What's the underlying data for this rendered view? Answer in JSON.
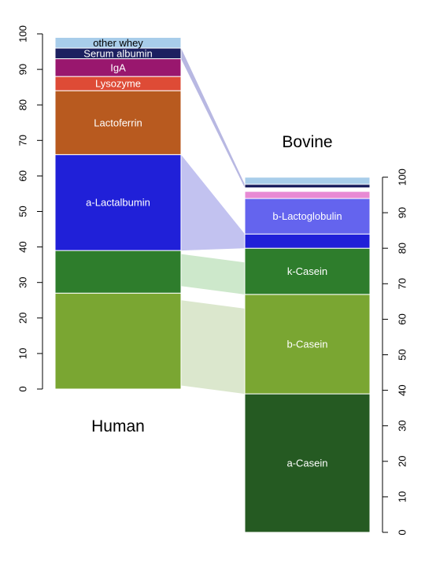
{
  "chart_data": {
    "type": "bar",
    "stacked": true,
    "bars": [
      {
        "name": "Human",
        "axis": {
          "side": "left",
          "ylim": [
            0,
            100
          ],
          "ticks": [
            0,
            10,
            20,
            30,
            40,
            50,
            60,
            70,
            80,
            90,
            100
          ]
        },
        "segments": [
          {
            "label": "",
            "start": 0,
            "end": 27,
            "color": "#7aa632"
          },
          {
            "label": "",
            "start": 27,
            "end": 39,
            "color": "#2e7d2c"
          },
          {
            "label": "a-Lactalbumin",
            "start": 39,
            "end": 66,
            "color": "#2020d8"
          },
          {
            "label": "Lactoferrin",
            "start": 66,
            "end": 84,
            "color": "#b85a1f"
          },
          {
            "label": "Lysozyme",
            "start": 84,
            "end": 88,
            "color": "#de4b36"
          },
          {
            "label": "IgA",
            "start": 88,
            "end": 93,
            "color": "#99176e"
          },
          {
            "label": "Serum albumin",
            "start": 93,
            "end": 96,
            "color": "#1c2060"
          },
          {
            "label": "other whey",
            "start": 96,
            "end": 99,
            "color": "#a8cdea"
          }
        ]
      },
      {
        "name": "Bovine",
        "axis": {
          "side": "right",
          "ylim": [
            0,
            100
          ],
          "ticks": [
            0,
            10,
            20,
            30,
            40,
            50,
            60,
            70,
            80,
            90,
            100
          ]
        },
        "segments": [
          {
            "label": "a-Casein",
            "start": 0,
            "end": 39,
            "color": "#255a22"
          },
          {
            "label": "b-Casein",
            "start": 39,
            "end": 67,
            "color": "#7aa632"
          },
          {
            "label": "k-Casein",
            "start": 67,
            "end": 80,
            "color": "#2e7d2c"
          },
          {
            "label": "",
            "start": 80,
            "end": 84,
            "color": "#2020d8"
          },
          {
            "label": "b-Lactoglobulin",
            "start": 84,
            "end": 94,
            "color": "#6464ee"
          },
          {
            "label": "",
            "start": 94,
            "end": 96,
            "color": "#e88ad4"
          },
          {
            "label": "",
            "start": 96,
            "end": 97,
            "color": "#ffffff"
          },
          {
            "label": "",
            "start": 97,
            "end": 98,
            "color": "#1c2060"
          },
          {
            "label": "",
            "start": 98,
            "end": 100,
            "color": "#a8cdea"
          }
        ]
      }
    ],
    "connectors": [
      {
        "from": [
          39,
          66
        ],
        "to": [
          80,
          84
        ],
        "color": "#c2c2f0"
      },
      {
        "from": [
          93,
          96
        ],
        "to": [
          97,
          98
        ],
        "color": "#b8b8e2"
      },
      {
        "from": [
          29,
          38
        ],
        "to": [
          67,
          76
        ],
        "color": "#cde8cb"
      },
      {
        "from": [
          1,
          25
        ],
        "to": [
          39,
          63
        ],
        "color": "#dbe7cd"
      }
    ],
    "grid": false,
    "legend": "none"
  }
}
